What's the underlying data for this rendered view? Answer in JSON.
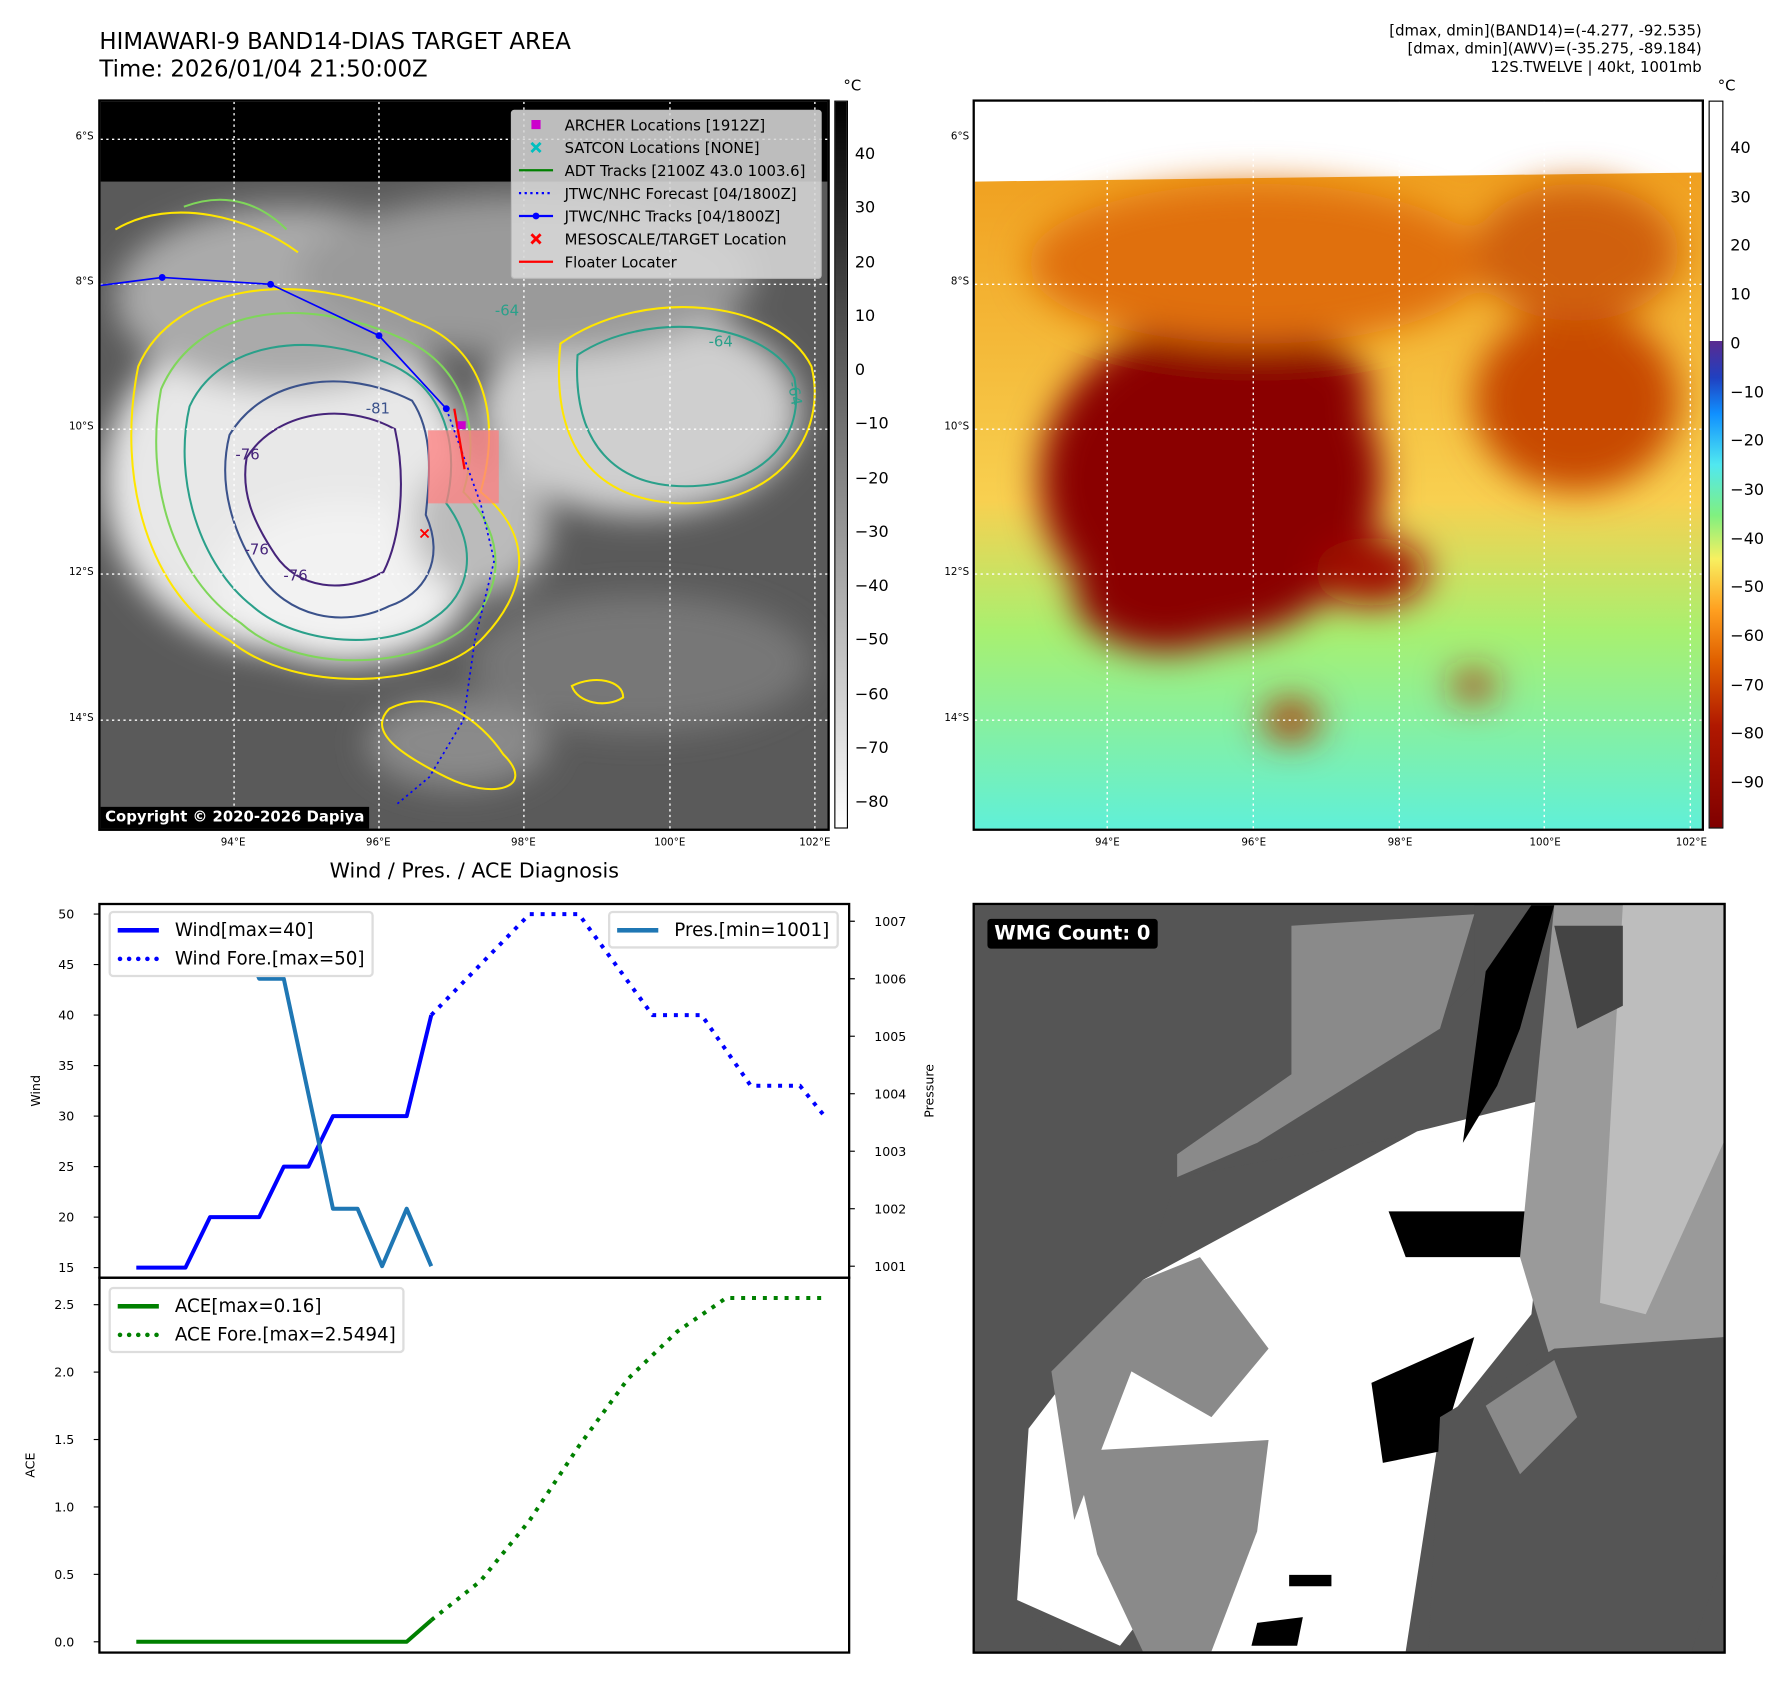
{
  "header": {
    "title_line1": "HIMAWARI-9 BAND14-DIAS TARGET AREA",
    "title_line2": "Time: 2026/01/04 21:50:00Z",
    "info_line1": "[dmax, dmin](BAND14)=(-4.277, -92.535)",
    "info_line2": "[dmax, dmin](AWV)=(-35.275, -89.184)",
    "info_line3": "12S.TWELVE | 40kt, 1001mb"
  },
  "maps": {
    "lat_ticks": [
      "6°S",
      "8°S",
      "10°S",
      "12°S",
      "14°S"
    ],
    "lon_ticks": [
      "94°E",
      "96°E",
      "98°E",
      "100°E",
      "102°E"
    ],
    "left_colorbar": {
      "unit": "°C",
      "ticks": [
        "40",
        "30",
        "20",
        "10",
        "0",
        "−10",
        "−20",
        "−30",
        "−40",
        "−50",
        "−60",
        "−70",
        "−80"
      ]
    },
    "right_colorbar": {
      "unit": "°C",
      "ticks": [
        "40",
        "30",
        "20",
        "10",
        "0",
        "−10",
        "−20",
        "−30",
        "−40",
        "−50",
        "−60",
        "−70",
        "−80",
        "−90"
      ]
    },
    "contour_labels": [
      "-64",
      "-64",
      "-81",
      "-76",
      "-76",
      "-76",
      "-64"
    ],
    "copyright": "Copyright © 2020-2026 Dapiya",
    "legend": [
      {
        "label": "ARCHER Locations [1912Z]",
        "icon": "square-marker",
        "color": "#cc00cc"
      },
      {
        "label": "SATCON Locations [NONE]",
        "icon": "x-marker",
        "color": "#00bfbf"
      },
      {
        "label": "ADT Tracks [2100Z 43.0 1003.6]",
        "icon": "line",
        "color": "#008000"
      },
      {
        "label": "JTWC/NHC Forecast [04/1800Z]",
        "icon": "dotted-line",
        "color": "#0000ff"
      },
      {
        "label": "JTWC/NHC Tracks [04/1800Z]",
        "icon": "line-dot",
        "color": "#0000ff"
      },
      {
        "label": "MESOSCALE/TARGET Location",
        "icon": "x-marker",
        "color": "#ff0000"
      },
      {
        "label": "Floater Locater",
        "icon": "line",
        "color": "#ff0000"
      }
    ]
  },
  "wmg": {
    "label": "WMG Count: 0"
  },
  "chart_data": [
    {
      "type": "line",
      "title": "Wind / Pres. / ACE Diagnosis",
      "ylabel": "Wind",
      "y2label": "Pressure",
      "ylim": [
        14,
        51
      ],
      "y2lim": [
        1000.8,
        1007.3
      ],
      "yticks": [
        "15",
        "20",
        "25",
        "30",
        "35",
        "40",
        "45",
        "50"
      ],
      "y2ticks": [
        "1001",
        "1002",
        "1003",
        "1004",
        "1005",
        "1006",
        "1007"
      ],
      "xlim": [
        -1.5,
        29
      ],
      "legend_left": [
        "Wind[max=40]",
        "Wind Fore.[max=50]"
      ],
      "legend_right": [
        "Pres.[min=1001]"
      ],
      "series": [
        {
          "name": "Wind",
          "color": "#0000ff",
          "style": "solid",
          "axis": "left",
          "x": [
            0,
            1,
            2,
            3,
            4,
            5,
            6,
            7,
            8,
            9,
            10,
            11,
            12
          ],
          "values": [
            15,
            15,
            15,
            20,
            20,
            20,
            25,
            25,
            30,
            30,
            30,
            30,
            40
          ]
        },
        {
          "name": "Wind Fore.",
          "color": "#0000ff",
          "style": "dotted",
          "axis": "left",
          "x": [
            12,
            16,
            18,
            21,
            23,
            25,
            27,
            28
          ],
          "values": [
            40,
            50,
            50,
            40,
            40,
            33,
            33,
            30
          ]
        },
        {
          "name": "Pres.",
          "color": "#1f77b4",
          "style": "solid",
          "axis": "right",
          "x": [
            0,
            4,
            5,
            6,
            8,
            9,
            10,
            11,
            12
          ],
          "values": [
            1007,
            1007,
            1006,
            1006,
            1002,
            1002,
            1001,
            1002,
            1001
          ]
        }
      ]
    },
    {
      "type": "line",
      "ylabel": "ACE",
      "ylim": [
        -0.08,
        2.7
      ],
      "yticks": [
        "0.0",
        "0.5",
        "1.0",
        "1.5",
        "2.0",
        "2.5"
      ],
      "xlim": [
        -1.5,
        29
      ],
      "legend": [
        "ACE[max=0.16]",
        "ACE Fore.[max=2.5494]"
      ],
      "series": [
        {
          "name": "ACE",
          "color": "#008000",
          "style": "solid",
          "x": [
            0,
            11,
            12
          ],
          "values": [
            0,
            0,
            0.16
          ]
        },
        {
          "name": "ACE Fore.",
          "color": "#008000",
          "style": "dotted",
          "x": [
            12,
            14,
            16,
            18,
            20,
            22,
            24,
            28
          ],
          "values": [
            0.16,
            0.45,
            0.9,
            1.45,
            1.95,
            2.3,
            2.55,
            2.55
          ]
        }
      ]
    }
  ]
}
